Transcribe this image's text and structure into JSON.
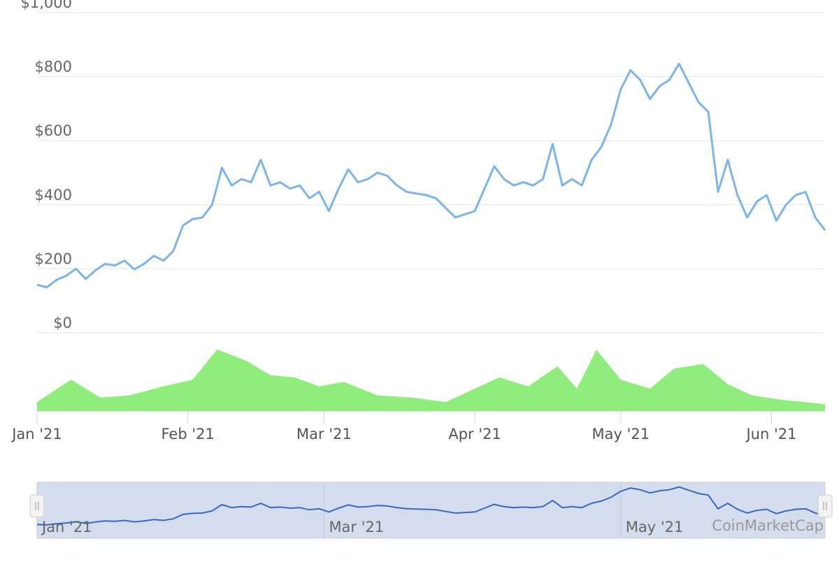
{
  "chart_data": {
    "type": "line",
    "y_axis": {
      "ticks": [
        "$0",
        "$200",
        "$400",
        "$600",
        "$800",
        "$1,000"
      ],
      "values": [
        0,
        200,
        400,
        600,
        800,
        1000
      ],
      "ylim": [
        0,
        1000
      ],
      "grid": true
    },
    "x_axis": {
      "ticks": [
        "Jan '21",
        "Feb '21",
        "Mar '21",
        "Apr '21",
        "May '21",
        "Jun '21"
      ],
      "dates": [
        "2021-01-01",
        "2021-02-01",
        "2021-03-01",
        "2021-04-01",
        "2021-05-01",
        "2021-06-01"
      ],
      "xlim": [
        "2021-01-01",
        "2021-06-12"
      ]
    },
    "series": [
      {
        "type": "line",
        "color": "#7cb5ec",
        "x": [
          "2021-01-01",
          "2021-01-03",
          "2021-01-05",
          "2021-01-07",
          "2021-01-09",
          "2021-01-11",
          "2021-01-13",
          "2021-01-15",
          "2021-01-17",
          "2021-01-19",
          "2021-01-21",
          "2021-01-23",
          "2021-01-25",
          "2021-01-27",
          "2021-01-29",
          "2021-01-31",
          "2021-02-02",
          "2021-02-04",
          "2021-02-06",
          "2021-02-08",
          "2021-02-10",
          "2021-02-12",
          "2021-02-14",
          "2021-02-16",
          "2021-02-18",
          "2021-02-20",
          "2021-02-22",
          "2021-02-24",
          "2021-02-26",
          "2021-02-28",
          "2021-03-02",
          "2021-03-04",
          "2021-03-06",
          "2021-03-08",
          "2021-03-10",
          "2021-03-12",
          "2021-03-14",
          "2021-03-16",
          "2021-03-18",
          "2021-03-20",
          "2021-03-22",
          "2021-03-24",
          "2021-03-26",
          "2021-03-28",
          "2021-03-30",
          "2021-04-01",
          "2021-04-03",
          "2021-04-05",
          "2021-04-07",
          "2021-04-09",
          "2021-04-11",
          "2021-04-13",
          "2021-04-15",
          "2021-04-17",
          "2021-04-19",
          "2021-04-21",
          "2021-04-23",
          "2021-04-25",
          "2021-04-27",
          "2021-04-29",
          "2021-05-01",
          "2021-05-03",
          "2021-05-05",
          "2021-05-07",
          "2021-05-09",
          "2021-05-11",
          "2021-05-13",
          "2021-05-15",
          "2021-05-17",
          "2021-05-19",
          "2021-05-21",
          "2021-05-23",
          "2021-05-25",
          "2021-05-27",
          "2021-05-29",
          "2021-05-31",
          "2021-06-02",
          "2021-06-04",
          "2021-06-06",
          "2021-06-08",
          "2021-06-10",
          "2021-06-12"
        ],
        "values": [
          150,
          142,
          165,
          178,
          200,
          168,
          195,
          215,
          210,
          225,
          198,
          215,
          240,
          225,
          255,
          335,
          355,
          360,
          400,
          515,
          460,
          480,
          470,
          540,
          460,
          470,
          450,
          460,
          420,
          440,
          380,
          450,
          510,
          470,
          480,
          500,
          490,
          460,
          440,
          435,
          430,
          420,
          390,
          360,
          370,
          380,
          450,
          520,
          480,
          460,
          470,
          460,
          480,
          590,
          460,
          480,
          460,
          540,
          580,
          650,
          760,
          820,
          790,
          730,
          770,
          790,
          840,
          780,
          720,
          690,
          440,
          540,
          430,
          360,
          410,
          430,
          350,
          400,
          430,
          440,
          360,
          320
        ]
      }
    ],
    "volume": {
      "type": "area",
      "color": "#90ed7d",
      "x": [
        "2021-01-01",
        "2021-01-08",
        "2021-01-14",
        "2021-01-20",
        "2021-01-27",
        "2021-02-02",
        "2021-02-07",
        "2021-02-13",
        "2021-02-18",
        "2021-02-23",
        "2021-02-28",
        "2021-03-05",
        "2021-03-12",
        "2021-03-19",
        "2021-03-26",
        "2021-03-31",
        "2021-04-06",
        "2021-04-12",
        "2021-04-18",
        "2021-04-22",
        "2021-04-26",
        "2021-05-01",
        "2021-05-07",
        "2021-05-12",
        "2021-05-18",
        "2021-05-23",
        "2021-05-28",
        "2021-06-03",
        "2021-06-08",
        "2021-06-12"
      ],
      "values": [
        8,
        28,
        12,
        14,
        22,
        28,
        55,
        45,
        32,
        30,
        22,
        26,
        14,
        12,
        8,
        18,
        30,
        22,
        40,
        20,
        55,
        28,
        20,
        38,
        42,
        24,
        14,
        10,
        8,
        6
      ]
    },
    "navigator": {
      "ticks": [
        "Jan '21",
        "Mar '21",
        "May '21"
      ],
      "credit": "CoinMarketCap"
    }
  }
}
